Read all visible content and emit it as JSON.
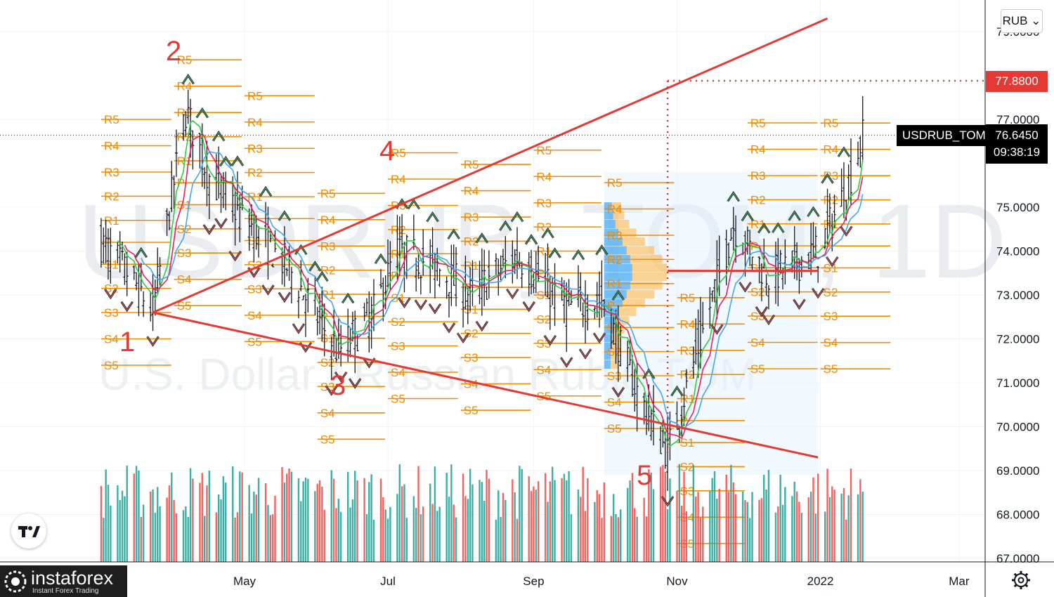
{
  "chart_data": {
    "type": "candlestick",
    "symbol": "USDRUB_TOM",
    "currency": "RUB",
    "title_watermark": "USDRUB_TOM, 1D",
    "subtitle_watermark": "U.S. Dollar / Russian Ruble TOM",
    "last_price": "76.6450",
    "countdown": "09:38:19",
    "marked_level": "77.8800",
    "ylim": [
      67.0,
      79.5
    ],
    "y_ticks": [
      "79.0000",
      "77.0000",
      "75.0000",
      "74.0000",
      "73.0000",
      "72.0000",
      "71.0000",
      "70.0000",
      "69.0000",
      "68.0000",
      "67.0000"
    ],
    "x_ticks": [
      "May",
      "Jul",
      "Sep",
      "Nov",
      "2022",
      "Mar"
    ],
    "wave_labels": [
      "1",
      "2",
      "3",
      "4",
      "5"
    ],
    "pivot_level_names": [
      "R5",
      "R4",
      "R3",
      "R2",
      "R1",
      "P",
      "S1",
      "S2",
      "S3",
      "S4",
      "S5"
    ],
    "close_anchors": [
      {
        "date": "2021-03-01",
        "close": 74.2
      },
      {
        "date": "2021-03-15",
        "close": 73.3
      },
      {
        "date": "2021-03-23",
        "close": 72.6
      },
      {
        "date": "2021-04-06",
        "close": 77.2
      },
      {
        "date": "2021-04-16",
        "close": 75.7
      },
      {
        "date": "2021-04-30",
        "close": 74.8
      },
      {
        "date": "2021-05-20",
        "close": 73.6
      },
      {
        "date": "2021-06-10",
        "close": 71.7
      },
      {
        "date": "2021-06-25",
        "close": 72.6
      },
      {
        "date": "2021-07-05",
        "close": 74.0
      },
      {
        "date": "2021-07-20",
        "close": 73.7
      },
      {
        "date": "2021-08-05",
        "close": 73.0
      },
      {
        "date": "2021-08-25",
        "close": 73.9
      },
      {
        "date": "2021-09-15",
        "close": 72.7
      },
      {
        "date": "2021-09-30",
        "close": 72.9
      },
      {
        "date": "2021-10-15",
        "close": 70.8
      },
      {
        "date": "2021-10-28",
        "close": 69.4
      },
      {
        "date": "2021-11-10",
        "close": 71.8
      },
      {
        "date": "2021-11-25",
        "close": 74.6
      },
      {
        "date": "2021-12-10",
        "close": 73.4
      },
      {
        "date": "2021-12-31",
        "close": 74.0
      },
      {
        "date": "2022-01-12",
        "close": 75.4
      },
      {
        "date": "2022-01-19",
        "close": 76.6
      }
    ],
    "trendlines": [
      {
        "from": {
          "date": "2021-03-23",
          "price": 72.6
        },
        "to": {
          "date": "2021-12-31",
          "price": 69.3
        },
        "color": "#e53935"
      },
      {
        "from": {
          "date": "2021-03-23",
          "price": 72.6
        },
        "to": {
          "date": "2022-01-04",
          "price": 79.3
        },
        "color": "#e53935"
      },
      {
        "from": {
          "date": "2021-10-28",
          "price": 73.55
        },
        "to": {
          "date": "2021-12-31",
          "price": 73.55
        },
        "color": "#e53935"
      }
    ],
    "grid": true,
    "legend": "none"
  },
  "ui": {
    "currency_label": "RUB",
    "symbol_tag": "USDRUB_TOM",
    "brand_name": "instaforex",
    "brand_tagline": "Instant Forex Trading",
    "colors": {
      "up": "#26a69a",
      "down": "#ef5350",
      "trend": "#e53935",
      "pivot": "#f08c00",
      "ma_green": "#2ecc40",
      "ma_pink": "#e91e63",
      "ma_blue": "#42a5f5"
    }
  }
}
